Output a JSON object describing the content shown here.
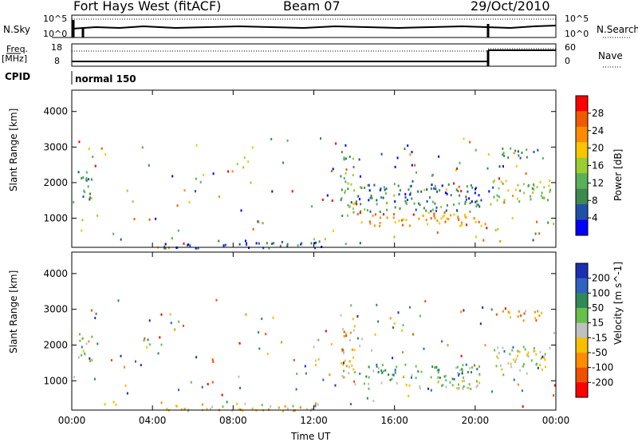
{
  "header": {
    "title": "Fort Hays West (fitACF)",
    "beam": "Beam 07",
    "date": "29/Oct/2010"
  },
  "summary_panels": {
    "nsky_label": "N.Sky",
    "nsearch_label": "N.Search",
    "nsky_ticks": [
      "10^5",
      "10^0"
    ],
    "nsearch_ticks": [
      "10^5",
      "10^0"
    ],
    "freq_label": "Freq.",
    "freq_unit": "[MHz]",
    "freq_ticks": [
      "18",
      "8"
    ],
    "nave_label": "Nave",
    "nave_ticks": [
      "60",
      "0"
    ],
    "cpid_label": "CPID",
    "cpid_value": "normal 150"
  },
  "colors": {
    "power": [
      "#0000ff",
      "#1f4fa8",
      "#3c8a4d",
      "#58b158",
      "#9acd32",
      "#f7c600",
      "#ff8c00",
      "#f25a00",
      "#ff0000"
    ],
    "velocity": [
      "#1b2fb2",
      "#2d62c3",
      "#2e8b57",
      "#66c04a",
      "#c0c0c0",
      "#f5c000",
      "#ff8c00",
      "#f05000",
      "#ff0000"
    ]
  },
  "chart_data": [
    {
      "type": "heatmap",
      "title": "",
      "ylabel": "Slant Range [km]",
      "xlabel": "Time UT",
      "x_ticks": [
        "00:00",
        "04:00",
        "08:00",
        "12:00",
        "16:00",
        "20:00",
        "00:00"
      ],
      "y_ticks": [
        "1000",
        "2000",
        "3000",
        "4000"
      ],
      "xlim_hours": [
        0,
        24
      ],
      "ylim_km": [
        180,
        4600
      ],
      "colorbar": {
        "label": "Power [dB]",
        "ticks": [
          "4",
          "8",
          "12",
          "16",
          "20",
          "24",
          "28"
        ],
        "range": [
          0,
          30
        ]
      },
      "regions": [
        {
          "t": [
            0.3,
            1.0
          ],
          "r": [
            1500,
            2400
          ],
          "v": 8
        },
        {
          "t": [
            13.3,
            14.0
          ],
          "r": [
            1100,
            2900
          ],
          "v": 12
        },
        {
          "t": [
            14.0,
            20.3
          ],
          "r": [
            1500,
            2000
          ],
          "v": 6
        },
        {
          "t": [
            14.0,
            20.3
          ],
          "r": [
            1200,
            1500
          ],
          "v": 10
        },
        {
          "t": [
            14.0,
            20.3
          ],
          "r": [
            800,
            1200
          ],
          "v": 22
        },
        {
          "t": [
            20.8,
            23.7
          ],
          "r": [
            1500,
            2100
          ],
          "v": 14
        },
        {
          "t": [
            21.3,
            23.5
          ],
          "r": [
            2700,
            3000
          ],
          "v": 8
        },
        {
          "t": [
            3.8,
            5.2
          ],
          "r": [
            180,
            260
          ],
          "v": 22
        },
        {
          "t": [
            4.5,
            12.5
          ],
          "r": [
            180,
            400
          ],
          "v": 6
        }
      ]
    },
    {
      "type": "heatmap",
      "title": "",
      "ylabel": "Slant Range [km]",
      "xlabel": "Time UT",
      "x_ticks": [
        "00:00",
        "04:00",
        "08:00",
        "12:00",
        "16:00",
        "20:00",
        "00:00"
      ],
      "y_ticks": [
        "1000",
        "2000",
        "3000",
        "4000"
      ],
      "xlim_hours": [
        0,
        24
      ],
      "ylim_km": [
        180,
        4600
      ],
      "colorbar": {
        "label": "Velocity [m s^-1]",
        "ticks": [
          "200",
          "100",
          "50",
          "15",
          "-15",
          "-50",
          "-100",
          "-200"
        ],
        "range": [
          -250,
          250
        ]
      },
      "regions": [
        {
          "t": [
            0.3,
            1.0
          ],
          "r": [
            1500,
            2400
          ],
          "v": 0
        },
        {
          "t": [
            13.3,
            14.0
          ],
          "r": [
            1100,
            2900
          ],
          "v": -30
        },
        {
          "t": [
            14.0,
            20.3
          ],
          "r": [
            1050,
            1500
          ],
          "v": 80
        },
        {
          "t": [
            14.0,
            20.3
          ],
          "r": [
            800,
            1050
          ],
          "v": 0
        },
        {
          "t": [
            20.8,
            23.7
          ],
          "r": [
            1300,
            2000
          ],
          "v": 0
        },
        {
          "t": [
            21.3,
            23.5
          ],
          "r": [
            2700,
            3000
          ],
          "v": -80
        },
        {
          "t": [
            3.8,
            5.2
          ],
          "r": [
            180,
            260
          ],
          "v": -60
        },
        {
          "t": [
            4.5,
            12.5
          ],
          "r": [
            180,
            400
          ],
          "v": -40
        }
      ]
    }
  ]
}
